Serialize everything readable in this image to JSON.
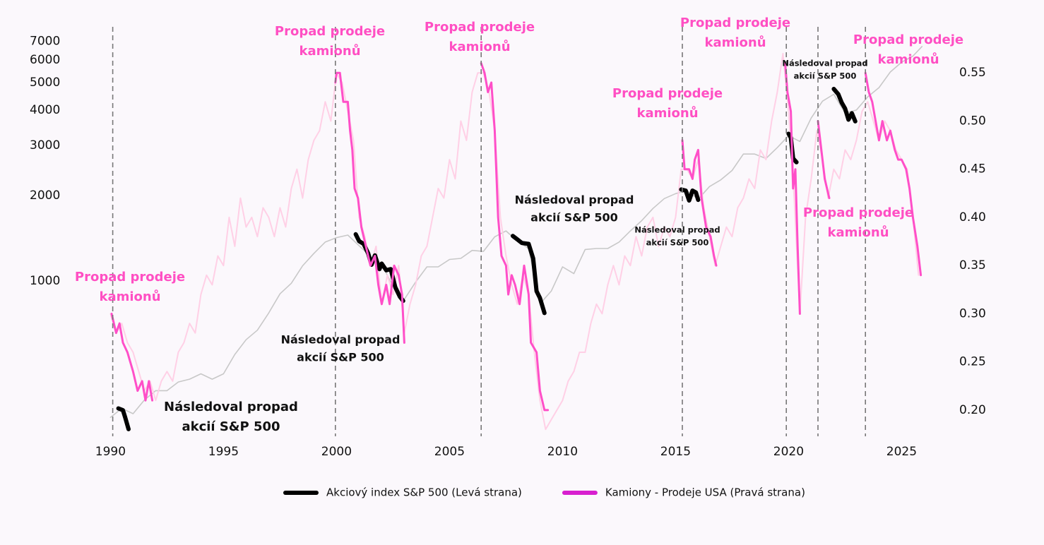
{
  "chart_data": {
    "type": "line",
    "xlim": [
      1989.8,
      2026.05
    ],
    "xticks": [
      1990,
      1995,
      2000,
      2005,
      2010,
      2015,
      2020,
      2025
    ],
    "ylim": [
      288,
      8000
    ],
    "log_scale_y": true,
    "yticks": [
      1000,
      2000,
      3000,
      4000,
      5000,
      6000,
      7000
    ],
    "y2lim": [
      0.175,
      0.6
    ],
    "y2ticks": [
      {
        "value": 0.2,
        "label": "0.20"
      },
      0.25,
      {
        "value": 0.3,
        "label": "0.30"
      },
      0.35,
      {
        "value": 0.4,
        "label": "0.40"
      },
      0.45,
      {
        "value": 0.5,
        "label": "0.50"
      },
      0.55
    ],
    "grid": false,
    "legend": "bottom",
    "vlines": [
      1990.1,
      1999.95,
      2006.4,
      2015.3,
      2019.9,
      2021.3,
      2023.4
    ],
    "vline_color": "#777777",
    "series": [
      {
        "name": "Akciový index S&P 500 (Levá strana)",
        "color": "#000000",
        "axis": "y",
        "width": 6,
        "x": [
          1990.35,
          1990.55,
          1990.65,
          1990.8,
          1991,
          2000.85,
          2001.0,
          2001.2,
          2001.4,
          2001.55,
          2001.7,
          2001.9,
          2002.0,
          2002.2,
          2002.4,
          2002.6,
          2002.8,
          2002.95,
          2005,
          2007.8,
          2008.0,
          2008.2,
          2008.5,
          2008.7,
          2008.85,
          2009.0,
          2009.2,
          2012,
          2015.25,
          2015.45,
          2015.6,
          2015.75,
          2015.9,
          2016.0,
          2018,
          2020.0,
          2020.1,
          2020.2,
          2020.35,
          2021,
          2022.0,
          2022.2,
          2022.35,
          2022.5,
          2022.65,
          2022.8,
          2022.95
        ],
        "values": [
          355,
          350,
          330,
          300,
          null,
          1460,
          1380,
          1350,
          1250,
          1140,
          1230,
          1100,
          1150,
          1090,
          1100,
          950,
          880,
          850,
          null,
          1440,
          1400,
          1360,
          1350,
          1200,
          920,
          870,
          770,
          null,
          2100,
          2080,
          1920,
          2080,
          2050,
          1930,
          null,
          3300,
          3200,
          2700,
          2620,
          null,
          4750,
          4550,
          4250,
          4050,
          3700,
          3900,
          3650
        ]
      },
      {
        "name": "Kamiony - Prodeje USA (Pravá strana)",
        "color": "#ff4fc8",
        "legend_color": "#d81fcf",
        "axis": "y2",
        "width": 3,
        "x": [
          1990.05,
          1990.25,
          1990.4,
          1990.55,
          1990.75,
          1991.0,
          1991.2,
          1991.4,
          1991.55,
          1991.7,
          1991.85,
          1993,
          1999.95,
          2000.0,
          2000.15,
          2000.3,
          2000.5,
          2000.6,
          2000.7,
          2000.8,
          2000.95,
          2001.1,
          2001.3,
          2001.5,
          2001.7,
          2001.85,
          2002.0,
          2002.2,
          2002.35,
          2002.55,
          2002.75,
          2002.9,
          2003.0,
          2004,
          2006.4,
          2006.55,
          2006.7,
          2006.85,
          2007.0,
          2007.15,
          2007.3,
          2007.5,
          2007.6,
          2007.75,
          2007.9,
          2008.1,
          2008.3,
          2008.5,
          2008.6,
          2008.85,
          2009.0,
          2009.2,
          2009.35,
          2012,
          2015.3,
          2015.4,
          2015.6,
          2015.75,
          2015.85,
          2016.0,
          2016.15,
          2016.35,
          2016.55,
          2016.7,
          2016.8,
          2018,
          2019.85,
          2019.95,
          2020.1,
          2020.2,
          2020.3,
          2020.4,
          2020.5,
          2020.9,
          2021.3,
          2021.4,
          2021.5,
          2021.6,
          2021.8,
          2022.5,
          2023.4,
          2023.55,
          2023.7,
          2023.85,
          2024.0,
          2024.15,
          2024.35,
          2024.5,
          2024.7,
          2024.85,
          2025.0,
          2025.2,
          2025.35,
          2025.5,
          2025.7,
          2025.85
        ],
        "values": [
          0.3,
          0.28,
          0.29,
          0.27,
          0.26,
          0.24,
          0.22,
          0.23,
          0.21,
          0.23,
          0.21,
          null,
          0.54,
          0.55,
          0.55,
          0.52,
          0.52,
          0.49,
          0.47,
          0.43,
          0.42,
          0.39,
          0.37,
          0.35,
          0.36,
          0.33,
          0.31,
          0.33,
          0.31,
          0.35,
          0.34,
          0.32,
          0.27,
          null,
          0.56,
          0.55,
          0.53,
          0.54,
          0.49,
          0.4,
          0.36,
          0.35,
          0.32,
          0.34,
          0.33,
          0.31,
          0.35,
          0.32,
          0.27,
          0.26,
          0.22,
          0.2,
          0.2,
          null,
          0.48,
          0.45,
          0.45,
          0.44,
          0.46,
          0.47,
          0.42,
          0.39,
          0.38,
          0.36,
          0.35,
          null,
          0.56,
          0.53,
          0.51,
          0.43,
          0.45,
          0.37,
          0.3,
          null,
          0.5,
          0.48,
          0.46,
          0.44,
          0.42,
          null,
          0.55,
          0.53,
          0.52,
          0.5,
          0.48,
          0.5,
          0.48,
          0.49,
          0.47,
          0.46,
          0.46,
          0.45,
          0.43,
          0.4,
          0.37,
          0.34
        ]
      },
      {
        "color": "#c8c8c8",
        "axis": "y",
        "width": 1.6,
        "x": [
          1990,
          1990.5,
          1991,
          1991.5,
          1992,
          1992.5,
          1993,
          1993.5,
          1994,
          1994.5,
          1995,
          1995.5,
          1996,
          1996.5,
          1997,
          1997.5,
          1998,
          1998.5,
          1999,
          1999.5,
          2000,
          2000.5,
          2001,
          2001.5,
          2002,
          2002.5,
          2003,
          2003.5,
          2004,
          2004.5,
          2005,
          2005.5,
          2006,
          2006.5,
          2007,
          2007.5,
          2008,
          2008.5,
          2009,
          2009.5,
          2010,
          2010.5,
          2011,
          2011.5,
          2012,
          2012.5,
          2013,
          2013.5,
          2014,
          2014.5,
          2015,
          2015.5,
          2016,
          2016.5,
          2017,
          2017.5,
          2018,
          2018.5,
          2019,
          2019.5,
          2020,
          2020.5,
          2021,
          2021.5,
          2022,
          2022.5,
          2023,
          2023.5,
          2024,
          2024.5,
          2025,
          2025.5,
          2025.9
        ],
        "values": [
          330,
          355,
          340,
          380,
          410,
          410,
          440,
          450,
          470,
          450,
          470,
          550,
          620,
          670,
          770,
          900,
          980,
          1130,
          1250,
          1370,
          1420,
          1450,
          1330,
          1220,
          1140,
          960,
          860,
          990,
          1120,
          1120,
          1190,
          1200,
          1280,
          1270,
          1430,
          1500,
          1380,
          1300,
          830,
          920,
          1120,
          1060,
          1290,
          1300,
          1300,
          1370,
          1500,
          1630,
          1800,
          1950,
          2030,
          2080,
          1940,
          2150,
          2270,
          2450,
          2800,
          2800,
          2700,
          2950,
          3250,
          3100,
          3750,
          4300,
          4550,
          3900,
          4000,
          4450,
          4800,
          5450,
          5900,
          6200,
          6700
        ]
      },
      {
        "color": "#ffd0e6",
        "axis": "y2",
        "width": 2,
        "x": [
          1990,
          1990.25,
          1990.5,
          1990.75,
          1991,
          1991.25,
          1991.5,
          1991.75,
          1992,
          1992.25,
          1992.5,
          1992.75,
          1993,
          1993.25,
          1993.5,
          1993.75,
          1994,
          1994.25,
          1994.5,
          1994.75,
          1995,
          1995.25,
          1995.5,
          1995.75,
          1996,
          1996.25,
          1996.5,
          1996.75,
          1997,
          1997.25,
          1997.5,
          1997.75,
          1998,
          1998.25,
          1998.5,
          1998.75,
          1999,
          1999.25,
          1999.5,
          1999.75,
          2000,
          2000.25,
          2000.5,
          2000.75,
          2001,
          2001.25,
          2001.5,
          2001.75,
          2002,
          2002.25,
          2002.5,
          2002.75,
          2003,
          2003.25,
          2003.5,
          2003.75,
          2004,
          2004.25,
          2004.5,
          2004.75,
          2005,
          2005.25,
          2005.5,
          2005.75,
          2006,
          2006.25,
          2006.5,
          2006.75,
          2007,
          2007.25,
          2007.5,
          2007.75,
          2008,
          2008.25,
          2008.5,
          2008.75,
          2009,
          2009.25,
          2009.5,
          2009.75,
          2010,
          2010.25,
          2010.5,
          2010.75,
          2011,
          2011.25,
          2011.5,
          2011.75,
          2012,
          2012.25,
          2012.5,
          2012.75,
          2013,
          2013.25,
          2013.5,
          2013.75,
          2014,
          2014.25,
          2014.5,
          2014.75,
          2015,
          2015.25,
          2015.5,
          2015.75,
          2016,
          2016.25,
          2016.5,
          2016.75,
          2017,
          2017.25,
          2017.5,
          2017.75,
          2018,
          2018.25,
          2018.5,
          2018.75,
          2019,
          2019.25,
          2019.5,
          2019.75,
          2020,
          2020.25,
          2020.5,
          2020.75,
          2021,
          2021.25,
          2021.5,
          2021.75,
          2022,
          2022.25,
          2022.5,
          2022.75,
          2023,
          2023.25,
          2023.5,
          2023.75,
          2024,
          2024.25,
          2024.5,
          2024.75,
          2025,
          2025.25,
          2025.5,
          2025.75
        ],
        "values": [
          0.3,
          0.28,
          0.29,
          0.27,
          0.26,
          0.24,
          0.22,
          0.23,
          0.21,
          0.23,
          0.24,
          0.23,
          0.26,
          0.27,
          0.29,
          0.28,
          0.32,
          0.34,
          0.33,
          0.36,
          0.35,
          0.4,
          0.37,
          0.42,
          0.39,
          0.4,
          0.38,
          0.41,
          0.4,
          0.38,
          0.41,
          0.39,
          0.43,
          0.45,
          0.42,
          0.46,
          0.48,
          0.49,
          0.52,
          0.5,
          0.55,
          0.54,
          0.51,
          0.48,
          0.4,
          0.38,
          0.35,
          0.37,
          0.31,
          0.34,
          0.32,
          0.35,
          0.28,
          0.31,
          0.33,
          0.36,
          0.37,
          0.4,
          0.43,
          0.42,
          0.46,
          0.44,
          0.5,
          0.48,
          0.53,
          0.55,
          0.55,
          0.53,
          0.49,
          0.4,
          0.36,
          0.33,
          0.31,
          0.34,
          0.32,
          0.26,
          0.21,
          0.18,
          0.19,
          0.2,
          0.21,
          0.23,
          0.24,
          0.26,
          0.26,
          0.29,
          0.31,
          0.3,
          0.33,
          0.35,
          0.33,
          0.36,
          0.35,
          0.38,
          0.36,
          0.39,
          0.4,
          0.37,
          0.39,
          0.38,
          0.4,
          0.45,
          0.45,
          0.44,
          0.46,
          0.41,
          0.38,
          0.35,
          0.37,
          0.39,
          0.38,
          0.41,
          0.42,
          0.44,
          0.43,
          0.47,
          0.46,
          0.5,
          0.53,
          0.57,
          0.51,
          0.42,
          0.3,
          0.4,
          0.44,
          0.49,
          0.46,
          0.42,
          0.45,
          0.44,
          0.47,
          0.46,
          0.48,
          0.51,
          0.52,
          0.5,
          0.48,
          0.5,
          0.49,
          0.47,
          0.46,
          0.45,
          0.4,
          0.34
        ]
      }
    ],
    "annotations": [
      {
        "lines": [
          "Propad prodeje",
          "kamionů"
        ],
        "color": "#ff4fc3"
      },
      {
        "lines": [
          "Propad prodeje",
          "kamionů"
        ],
        "color": "#ff4fc3"
      },
      {
        "lines": [
          "Propad prodeje",
          "kamionů"
        ],
        "color": "#ff4fc3"
      },
      {
        "lines": [
          "Propad prodeje",
          "kamionů"
        ],
        "color": "#ff4fc3"
      },
      {
        "lines": [
          "Propad prodeje",
          "kamionů"
        ],
        "color": "#ff4fc3"
      },
      {
        "lines": [
          "Propad prodeje",
          "kamionů"
        ],
        "color": "#ff4fc3"
      },
      {
        "lines": [
          "Propad prodeje",
          "kamionů"
        ],
        "color": "#ff4fc3"
      },
      {
        "lines": [
          "Následoval propad",
          "akcií S&P 500"
        ],
        "color": "#111111"
      },
      {
        "lines": [
          "Následoval propad",
          "akcií S&P 500"
        ],
        "color": "#111111"
      },
      {
        "lines": [
          "Následoval propad",
          "akcií S&P 500"
        ],
        "color": "#111111"
      },
      {
        "lines": [
          "Následoval propad",
          "akcií S&P 500"
        ],
        "color": "#111111"
      },
      {
        "lines": [
          "Následoval propad",
          "akcií S&P 500"
        ],
        "color": "#111111"
      }
    ]
  }
}
